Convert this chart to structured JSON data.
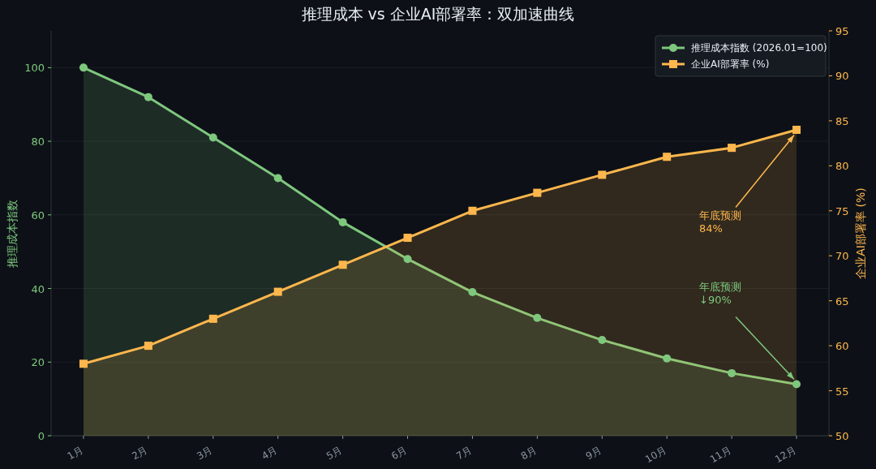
{
  "chart_data": {
    "type": "area",
    "title": "推理成本 vs 企业AI部署率：双加速曲线",
    "categories": [
      "1月",
      "2月",
      "3月",
      "4月",
      "5月",
      "6月",
      "7月",
      "8月",
      "9月",
      "10月",
      "11月",
      "12月"
    ],
    "series": [
      {
        "name": "推理成本指数 (2026.01=100)",
        "color": "#7ec87e",
        "marker": "circle",
        "values": [
          100,
          92,
          81,
          70,
          58,
          48,
          39,
          32,
          26,
          21,
          17,
          14
        ]
      },
      {
        "name": "企业AI部署率 (%)",
        "color": "#ffb74d",
        "marker": "square",
        "axis": "y2",
        "values": [
          58,
          60,
          63,
          66,
          69,
          72,
          75,
          77,
          79,
          81,
          82,
          84
        ]
      }
    ],
    "ylabel": "推理成本指数",
    "y2label": "企业AI部署率 (%)",
    "ylim": [
      0,
      110
    ],
    "yticks": [
      0,
      20,
      40,
      60,
      80,
      100
    ],
    "y2lim": [
      50,
      95
    ],
    "y2ticks": [
      50,
      55,
      60,
      65,
      70,
      75,
      80,
      85,
      90,
      95
    ],
    "annotations": [
      {
        "text": "年底预测\n84%",
        "x": "12月",
        "y": 83
      },
      {
        "text": "年底预测\n↓90%",
        "x": "12月",
        "y": 14
      }
    ],
    "grid": "y",
    "legend": "top right",
    "line_style": "solid"
  }
}
